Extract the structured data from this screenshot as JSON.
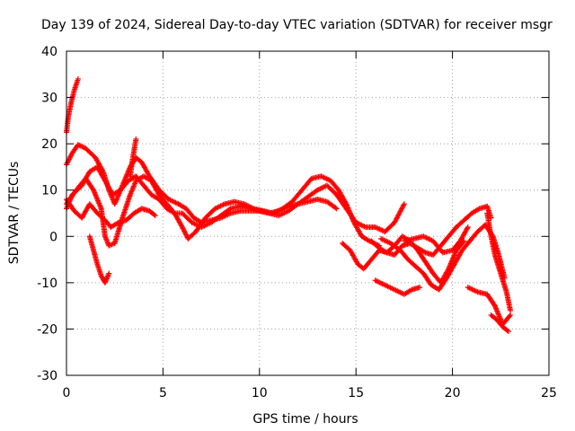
{
  "chart_data": {
    "type": "scatter",
    "title": "Day 139 of 2024, Sidereal Day-to-day VTEC variation (SDTVAR) for receiver msgr",
    "xlabel": "GPS time / hours",
    "ylabel": "SDTVAR / TECUs",
    "xlim": [
      0,
      25
    ],
    "ylim": [
      -30,
      40
    ],
    "x_ticks": [
      0,
      5,
      10,
      15,
      20,
      25
    ],
    "y_ticks": [
      -30,
      -20,
      -10,
      0,
      10,
      20,
      30,
      40
    ],
    "grid": true,
    "marker": "plus",
    "color": "#ff0000",
    "series": [
      {
        "points": [
          [
            0.0,
            22.5
          ],
          [
            0.1,
            26
          ],
          [
            0.25,
            29
          ],
          [
            0.4,
            31.5
          ],
          [
            0.6,
            34
          ]
        ]
      },
      {
        "points": [
          [
            0.0,
            15.5
          ],
          [
            0.3,
            18
          ],
          [
            0.6,
            19.8
          ],
          [
            1.0,
            19
          ],
          [
            1.5,
            17
          ],
          [
            1.9,
            14
          ],
          [
            2.2,
            10
          ],
          [
            2.5,
            7
          ],
          [
            2.9,
            11
          ],
          [
            3.3,
            15
          ],
          [
            3.6,
            17
          ],
          [
            3.9,
            16
          ],
          [
            4.3,
            13
          ],
          [
            4.8,
            10
          ],
          [
            5.3,
            8
          ],
          [
            5.8,
            7
          ],
          [
            6.2,
            6
          ],
          [
            6.6,
            4
          ],
          [
            7.0,
            3
          ],
          [
            7.5,
            3.5
          ],
          [
            8.0,
            4
          ],
          [
            8.5,
            5
          ],
          [
            9.0,
            5.5
          ],
          [
            9.5,
            5.5
          ],
          [
            10.0,
            5.5
          ],
          [
            10.5,
            5
          ],
          [
            11.0,
            4.5
          ],
          [
            11.5,
            5.5
          ],
          [
            12.0,
            7
          ],
          [
            12.5,
            8.5
          ],
          [
            13.0,
            10
          ],
          [
            13.5,
            11
          ],
          [
            14.0,
            9
          ],
          [
            14.5,
            6
          ],
          [
            15.0,
            3
          ],
          [
            15.5,
            2
          ],
          [
            16.0,
            2
          ],
          [
            16.5,
            1
          ],
          [
            17.0,
            3
          ],
          [
            17.5,
            7
          ]
        ]
      },
      {
        "points": [
          [
            0.0,
            7
          ],
          [
            0.5,
            10
          ],
          [
            1.0,
            12.5
          ],
          [
            1.4,
            10
          ],
          [
            1.8,
            6
          ],
          [
            2.0,
            0
          ],
          [
            2.2,
            -2
          ],
          [
            2.5,
            -1.5
          ],
          [
            2.9,
            4
          ],
          [
            3.3,
            9
          ],
          [
            3.6,
            12
          ],
          [
            4.0,
            13
          ],
          [
            4.4,
            12
          ],
          [
            4.8,
            9
          ],
          [
            5.2,
            7
          ],
          [
            5.6,
            5
          ],
          [
            6.0,
            2
          ],
          [
            6.3,
            -0.5
          ],
          [
            6.7,
            1
          ],
          [
            7.2,
            4
          ],
          [
            7.7,
            6
          ],
          [
            8.2,
            7
          ],
          [
            8.7,
            7.5
          ],
          [
            9.2,
            7
          ],
          [
            9.7,
            6
          ],
          [
            10.2,
            5.5
          ],
          [
            10.7,
            5
          ],
          [
            11.2,
            6
          ],
          [
            11.7,
            7.5
          ],
          [
            12.2,
            10
          ],
          [
            12.7,
            12.5
          ],
          [
            13.2,
            13
          ],
          [
            13.7,
            12
          ],
          [
            14.1,
            10
          ],
          [
            14.5,
            7
          ],
          [
            14.9,
            3
          ],
          [
            15.3,
            0
          ],
          [
            15.7,
            -1
          ],
          [
            16.2,
            -2
          ]
        ]
      },
      {
        "points": [
          [
            0.0,
            6
          ],
          [
            0.3,
            9
          ],
          [
            0.8,
            11
          ],
          [
            1.2,
            14
          ],
          [
            1.6,
            15
          ],
          [
            2.0,
            12
          ],
          [
            2.4,
            9
          ],
          [
            2.8,
            10
          ],
          [
            3.2,
            12
          ],
          [
            3.6,
            13
          ],
          [
            4.0,
            11
          ],
          [
            4.4,
            9
          ],
          [
            4.8,
            8
          ],
          [
            5.2,
            6
          ],
          [
            5.6,
            5
          ],
          [
            6.0,
            5
          ],
          [
            6.5,
            3
          ],
          [
            7.0,
            2
          ],
          [
            7.5,
            3
          ],
          [
            8.0,
            4.5
          ],
          [
            8.5,
            6
          ],
          [
            9.0,
            6.5
          ],
          [
            9.5,
            6
          ],
          [
            10.0,
            5.5
          ],
          [
            10.5,
            5
          ],
          [
            11.0,
            5.5
          ],
          [
            11.5,
            6.5
          ],
          [
            12.0,
            7
          ],
          [
            12.5,
            7.5
          ],
          [
            13.0,
            8
          ],
          [
            13.5,
            7.5
          ],
          [
            14.0,
            6
          ]
        ]
      },
      {
        "points": [
          [
            0.0,
            8
          ],
          [
            0.4,
            5.5
          ],
          [
            0.8,
            4
          ],
          [
            1.2,
            7
          ],
          [
            1.6,
            5
          ],
          [
            2.0,
            3.5
          ],
          [
            2.3,
            2
          ],
          [
            2.7,
            3
          ],
          [
            3.1,
            3.5
          ],
          [
            3.5,
            5
          ],
          [
            3.9,
            6
          ],
          [
            4.3,
            5.5
          ],
          [
            4.6,
            4.5
          ]
        ]
      },
      {
        "points": [
          [
            1.2,
            0
          ],
          [
            1.4,
            -3
          ],
          [
            1.6,
            -6
          ],
          [
            1.8,
            -8.5
          ],
          [
            2.0,
            -10
          ],
          [
            2.2,
            -8
          ]
        ]
      },
      {
        "points": [
          [
            3.3,
            13
          ],
          [
            3.4,
            16
          ],
          [
            3.5,
            18.5
          ],
          [
            3.6,
            21
          ]
        ]
      },
      {
        "points": [
          [
            14.3,
            -1.5
          ],
          [
            14.7,
            -3
          ],
          [
            15.1,
            -6
          ],
          [
            15.4,
            -7
          ],
          [
            15.8,
            -5
          ],
          [
            16.2,
            -3
          ],
          [
            16.6,
            -3.5
          ],
          [
            17.0,
            -4
          ],
          [
            17.4,
            -2
          ],
          [
            17.8,
            -1.5
          ],
          [
            18.2,
            -2.5
          ],
          [
            18.6,
            -3.5
          ],
          [
            19.0,
            -4
          ],
          [
            19.4,
            -2
          ],
          [
            19.8,
            0
          ],
          [
            20.2,
            2
          ],
          [
            20.6,
            3.5
          ],
          [
            21.0,
            5
          ],
          [
            21.4,
            6
          ],
          [
            21.8,
            6.5
          ],
          [
            22.0,
            4
          ]
        ]
      },
      {
        "points": [
          [
            15.8,
            -1
          ],
          [
            16.2,
            -2.5
          ],
          [
            16.6,
            -3.5
          ],
          [
            17.0,
            -2
          ],
          [
            17.4,
            0
          ],
          [
            17.8,
            -1
          ],
          [
            18.2,
            -3
          ],
          [
            18.6,
            -5.5
          ],
          [
            19.0,
            -8
          ],
          [
            19.4,
            -10
          ],
          [
            19.8,
            -7
          ],
          [
            20.2,
            -3
          ],
          [
            20.6,
            -1
          ]
        ]
      },
      {
        "points": [
          [
            16.3,
            -0.5
          ],
          [
            16.8,
            -1.5
          ],
          [
            17.3,
            -3
          ],
          [
            17.7,
            -5
          ],
          [
            18.1,
            -6.5
          ],
          [
            18.5,
            -8
          ],
          [
            18.9,
            -10.5
          ],
          [
            19.3,
            -11.5
          ],
          [
            19.7,
            -9
          ],
          [
            20.1,
            -6
          ],
          [
            20.5,
            -3
          ],
          [
            20.9,
            -1
          ],
          [
            21.3,
            1
          ],
          [
            21.7,
            2.5
          ],
          [
            22.1,
            0
          ],
          [
            22.4,
            -4
          ],
          [
            22.7,
            -9
          ]
        ]
      },
      {
        "points": [
          [
            17.5,
            -1
          ],
          [
            18.0,
            -0.5
          ],
          [
            18.5,
            0
          ],
          [
            19.0,
            -1
          ],
          [
            19.5,
            -3.5
          ],
          [
            20.0,
            -3
          ],
          [
            20.4,
            -1
          ],
          [
            20.8,
            2
          ]
        ]
      },
      {
        "points": [
          [
            16.0,
            -9.5
          ],
          [
            16.5,
            -10.5
          ],
          [
            17.0,
            -11.5
          ],
          [
            17.5,
            -12.5
          ],
          [
            17.9,
            -11.5
          ],
          [
            18.3,
            -11
          ]
        ]
      },
      {
        "points": [
          [
            20.8,
            -11
          ],
          [
            21.3,
            -12
          ],
          [
            21.8,
            -12.5
          ],
          [
            22.2,
            -15
          ],
          [
            22.6,
            -19
          ],
          [
            23.0,
            -17
          ]
        ]
      },
      {
        "points": [
          [
            22.0,
            -17
          ],
          [
            22.3,
            -18
          ],
          [
            22.6,
            -19.5
          ],
          [
            22.9,
            -20.5
          ]
        ]
      },
      {
        "points": [
          [
            21.8,
            5
          ],
          [
            22.0,
            0
          ],
          [
            22.2,
            -4
          ],
          [
            22.5,
            -8
          ],
          [
            22.8,
            -12
          ],
          [
            23.0,
            -16
          ]
        ]
      }
    ]
  }
}
